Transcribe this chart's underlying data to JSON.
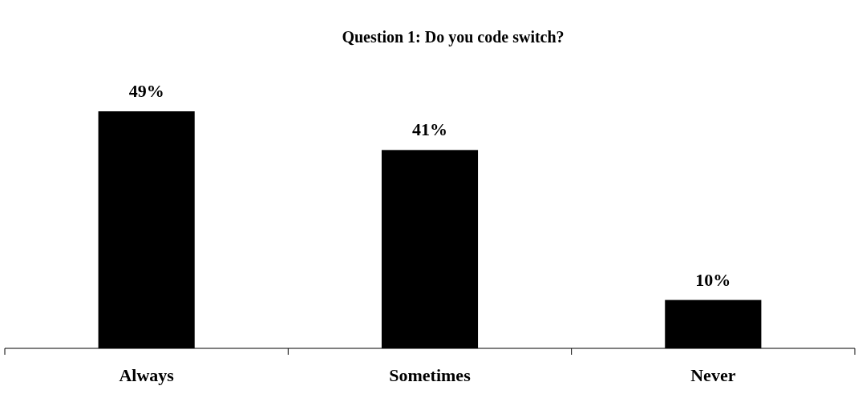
{
  "chart_data": {
    "type": "bar",
    "title": "Question 1: Do you code switch?",
    "categories": [
      "Always",
      "Sometimes",
      "Never"
    ],
    "values": [
      49,
      41,
      10
    ],
    "value_labels": [
      "49%",
      "41%",
      "10%"
    ],
    "color": "#000000"
  }
}
